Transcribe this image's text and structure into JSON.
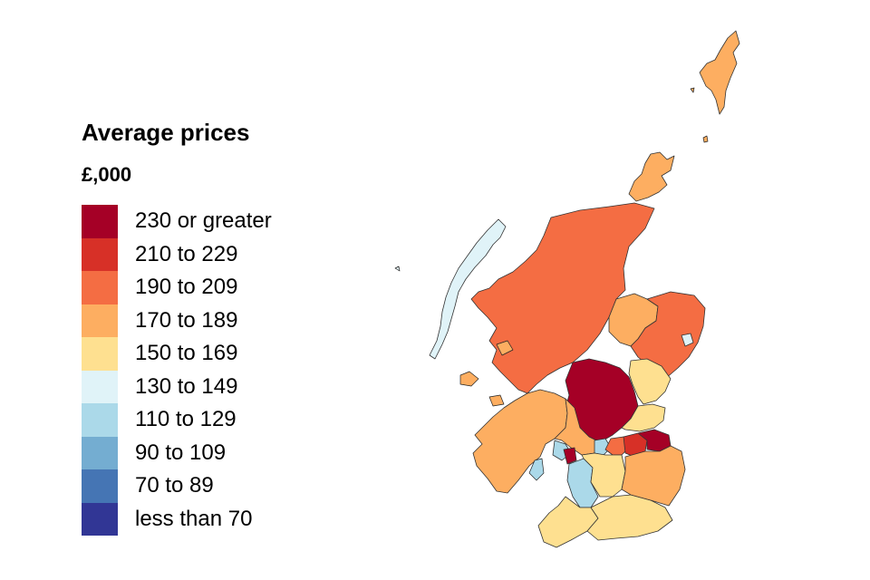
{
  "legend": {
    "title": "Average prices",
    "unit": "£,000",
    "items": [
      {
        "label": "230 or greater",
        "color": "#a50026"
      },
      {
        "label": "210 to 229",
        "color": "#d73027"
      },
      {
        "label": "190 to 209",
        "color": "#f46d43"
      },
      {
        "label": "170 to 189",
        "color": "#fdae61"
      },
      {
        "label": "150 to 169",
        "color": "#fee090"
      },
      {
        "label": "130 to 149",
        "color": "#e0f3f8"
      },
      {
        "label": "110 to 129",
        "color": "#abd9e9"
      },
      {
        "label": "90 to 109",
        "color": "#74add1"
      },
      {
        "label": "70 to 89",
        "color": "#4575b4"
      },
      {
        "label": "less than 70",
        "color": "#313695"
      }
    ]
  }
}
